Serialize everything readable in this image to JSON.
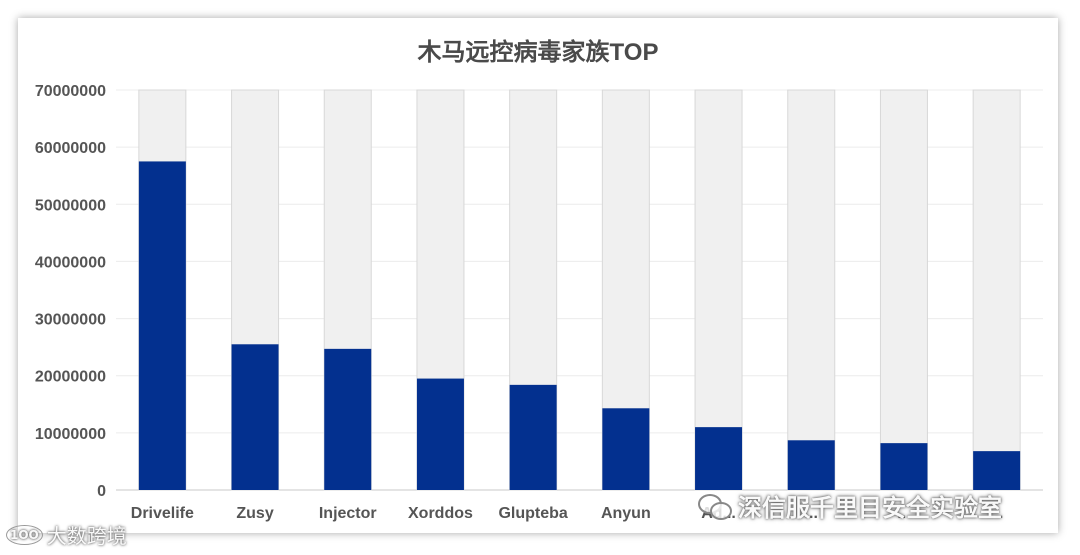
{
  "chart_data": {
    "type": "bar",
    "title": "木马远控病毒家族TOP",
    "xlabel": "",
    "ylabel": "",
    "categories": [
      "Drivelife",
      "Zusy",
      "Injector",
      "Xorddos",
      "Glupteba",
      "Anyun",
      "Ad...",
      "...",
      "...",
      "..."
    ],
    "values": [
      57500000,
      25500000,
      24700000,
      19500000,
      18400000,
      14300000,
      11000000,
      8700000,
      8200000,
      6800000
    ],
    "ylim": [
      0,
      70000000
    ],
    "yticks": [
      0,
      10000000,
      20000000,
      30000000,
      40000000,
      50000000,
      60000000,
      70000000
    ],
    "grid": true,
    "colors": {
      "bar": "#03308f",
      "background_bar": "#f0f0f0"
    }
  },
  "watermarks": {
    "account": "深信服千里目安全实验室",
    "source": "大数跨境",
    "source_logo": "1OO"
  }
}
